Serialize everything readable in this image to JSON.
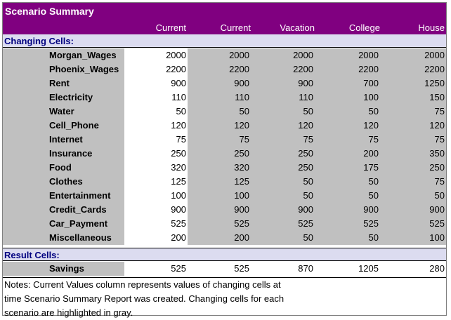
{
  "title": "Scenario Summary",
  "headers": [
    "Current Values:",
    "Current",
    "Vacation",
    "College",
    "House"
  ],
  "changing_label": "Changing Cells:",
  "changing_rows": [
    {
      "name": "Morgan_Wages",
      "values": [
        "2000",
        "2000",
        "2000",
        "2000",
        "2000"
      ]
    },
    {
      "name": "Phoenix_Wages",
      "values": [
        "2200",
        "2200",
        "2200",
        "2200",
        "2200"
      ]
    },
    {
      "name": "Rent",
      "values": [
        "900",
        "900",
        "900",
        "700",
        "1250"
      ]
    },
    {
      "name": "Electricity",
      "values": [
        "110",
        "110",
        "110",
        "100",
        "150"
      ]
    },
    {
      "name": "Water",
      "values": [
        "50",
        "50",
        "50",
        "50",
        "75"
      ]
    },
    {
      "name": "Cell_Phone",
      "values": [
        "120",
        "120",
        "120",
        "120",
        "120"
      ]
    },
    {
      "name": "Internet",
      "values": [
        "75",
        "75",
        "75",
        "75",
        "75"
      ]
    },
    {
      "name": "Insurance",
      "values": [
        "250",
        "250",
        "250",
        "200",
        "350"
      ]
    },
    {
      "name": "Food",
      "values": [
        "320",
        "320",
        "250",
        "175",
        "250"
      ]
    },
    {
      "name": "Clothes",
      "values": [
        "125",
        "125",
        "50",
        "50",
        "75"
      ]
    },
    {
      "name": "Entertainment",
      "values": [
        "100",
        "100",
        "50",
        "50",
        "50"
      ]
    },
    {
      "name": "Credit_Cards",
      "values": [
        "900",
        "900",
        "900",
        "900",
        "900"
      ]
    },
    {
      "name": "Car_Payment",
      "values": [
        "525",
        "525",
        "525",
        "525",
        "525"
      ]
    },
    {
      "name": "Miscellaneous",
      "values": [
        "200",
        "200",
        "50",
        "50",
        "100"
      ]
    }
  ],
  "result_label": "Result Cells:",
  "result_rows": [
    {
      "name": "Savings",
      "values": [
        "525",
        "525",
        "870",
        "1205",
        "280"
      ]
    }
  ],
  "notes": [
    "Notes:  Current Values column represents values of changing cells at",
    "time Scenario Summary Report was created.  Changing cells for each",
    "scenario are highlighted in gray."
  ],
  "colors": {
    "header_bg": "#800080",
    "section_bg": "#dcdcf0",
    "section_text": "#000080",
    "highlight": "#c0c0c0"
  }
}
